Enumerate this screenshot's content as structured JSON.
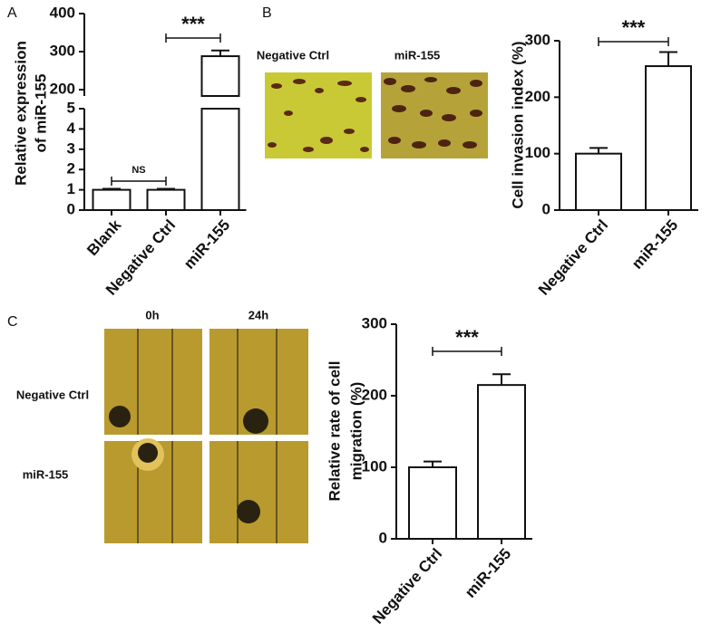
{
  "chart_data": [
    {
      "type": "bar",
      "panel_label": "A",
      "ylabel": [
        "Relative expression",
        "of miR-155"
      ],
      "categories": [
        "Blank",
        "Negative Ctrl",
        "miR-155"
      ],
      "values": [
        1,
        1,
        288
      ],
      "errors": [
        0.05,
        0.05,
        15
      ],
      "color": "#ffffff",
      "segments": [
        {
          "ylim": [
            0,
            5
          ],
          "yticks": [
            0,
            1,
            2,
            3,
            4,
            5
          ]
        },
        {
          "ylim": [
            200,
            400
          ],
          "yticks": [
            200,
            300,
            400
          ]
        }
      ],
      "annotations": [
        "NS",
        "***"
      ]
    },
    {
      "type": "bar",
      "panel_label": "B",
      "ylabel": [
        "Cell invasion index (%)"
      ],
      "categories": [
        "Negative Ctrl",
        "miR-155"
      ],
      "values": [
        100,
        255
      ],
      "errors": [
        10,
        25
      ],
      "color": "#ffffff",
      "ylim": [
        0,
        300
      ],
      "yticks": [
        0,
        100,
        200,
        300
      ],
      "annotations": [
        "***"
      ],
      "images": {
        "labels": [
          "Negative Ctrl",
          "miR-155"
        ]
      }
    },
    {
      "type": "bar",
      "panel_label": "C",
      "ylabel": [
        "Relative rate of cell",
        "migration (%)"
      ],
      "categories": [
        "Negative Ctrl",
        "miR-155"
      ],
      "values": [
        100,
        215
      ],
      "errors": [
        8,
        15
      ],
      "color": "#ffffff",
      "ylim": [
        0,
        300
      ],
      "yticks": [
        0,
        100,
        200,
        300
      ],
      "annotations": [
        "***"
      ],
      "images": {
        "columns": [
          "0h",
          "24h"
        ],
        "rows": [
          "Negative Ctrl",
          "miR-155"
        ]
      }
    }
  ]
}
